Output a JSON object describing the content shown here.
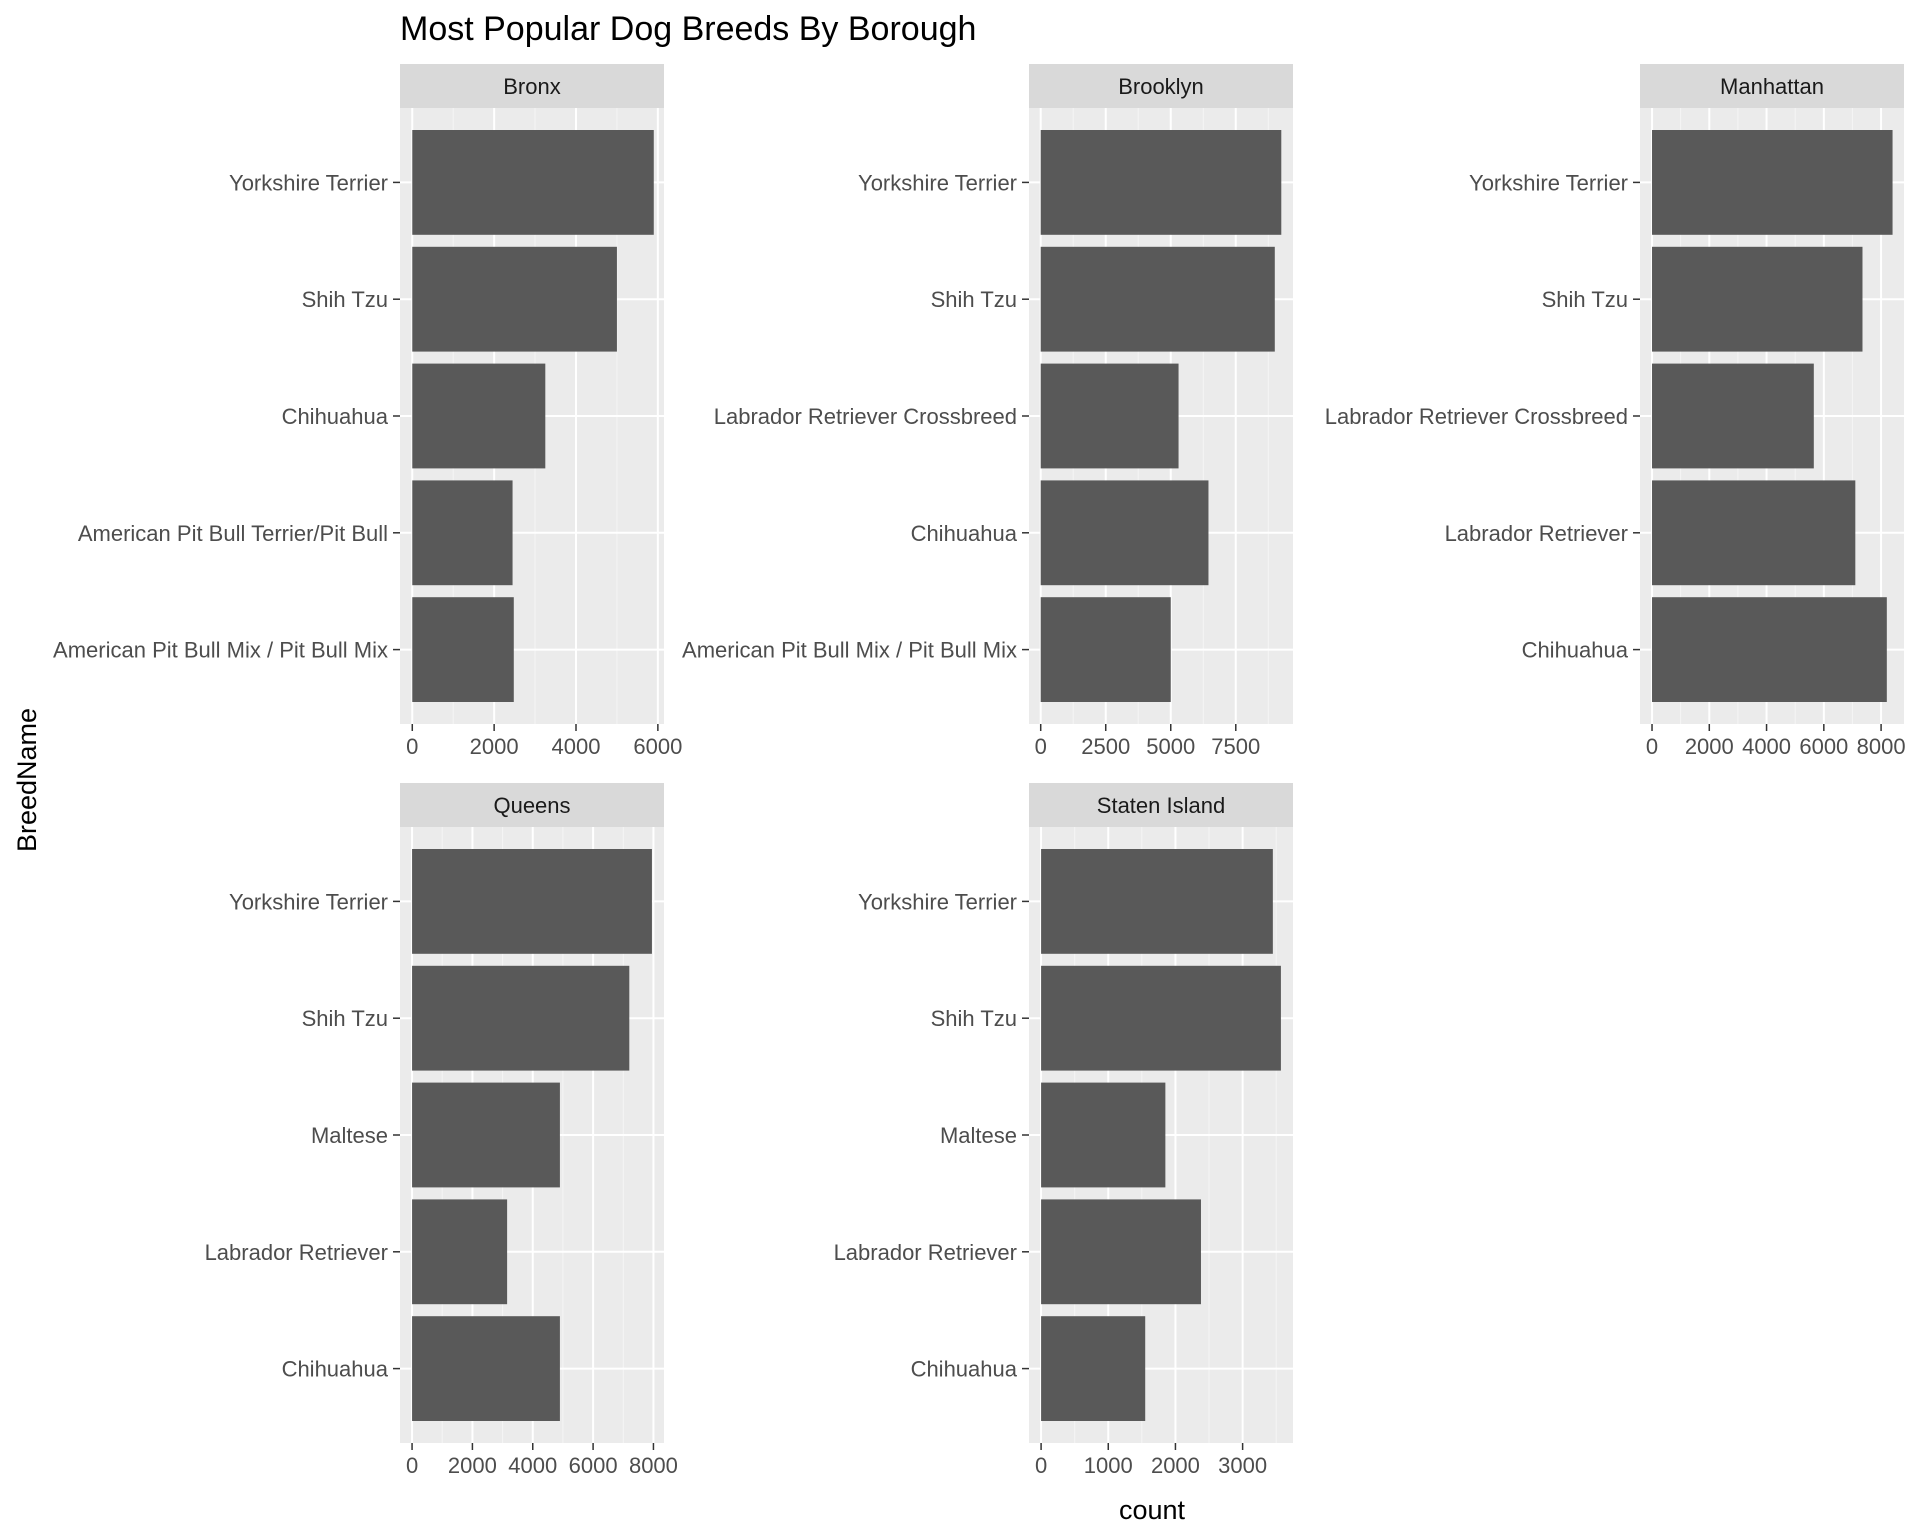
{
  "chart_data": {
    "type": "bar",
    "orientation": "horizontal",
    "title": "Most Popular Dog Breeds By Borough",
    "xlabel": "count",
    "ylabel": "BreedName",
    "grid": true,
    "facets": [
      {
        "name": "Bronx",
        "categories": [
          "Yorkshire Terrier",
          "Shih Tzu",
          "Chihuahua",
          "American Pit Bull Terrier/Pit Bull",
          "American Pit Bull Mix / Pit Bull Mix"
        ],
        "values": [
          5900,
          5000,
          3250,
          2450,
          2480
        ],
        "xlim": [
          -300,
          6150
        ],
        "ticks": [
          0,
          2000,
          4000,
          6000
        ],
        "tick_labels": [
          "0",
          "2000",
          "4000",
          "6000"
        ]
      },
      {
        "name": "Brooklyn",
        "categories": [
          "Yorkshire Terrier",
          "Shih Tzu",
          "Labrador Retriever Crossbreed",
          "Chihuahua",
          "American Pit Bull Mix / Pit Bull Mix"
        ],
        "values": [
          9250,
          9000,
          5300,
          6450,
          5000
        ],
        "xlim": [
          -450,
          9700
        ],
        "ticks": [
          0,
          2500,
          5000,
          7500
        ],
        "tick_labels": [
          "0",
          "2500",
          "5000",
          "7500"
        ]
      },
      {
        "name": "Manhattan",
        "categories": [
          "Yorkshire Terrier",
          "Shih Tzu",
          "Labrador Retriever Crossbreed",
          "Labrador Retriever",
          "Chihuahua"
        ],
        "values": [
          8400,
          7350,
          5650,
          7100,
          8200
        ],
        "xlim": [
          -420,
          8800
        ],
        "ticks": [
          0,
          2000,
          4000,
          6000,
          8000
        ],
        "tick_labels": [
          "0",
          "2000",
          "4000",
          "6000",
          "8000"
        ]
      },
      {
        "name": "Queens",
        "categories": [
          "Yorkshire Terrier",
          "Shih Tzu",
          "Maltese",
          "Labrador Retriever",
          "Chihuahua"
        ],
        "values": [
          7950,
          7200,
          4900,
          3150,
          4900
        ],
        "xlim": [
          -400,
          8350
        ],
        "ticks": [
          0,
          2000,
          4000,
          6000,
          8000
        ],
        "tick_labels": [
          "0",
          "2000",
          "4000",
          "6000",
          "8000"
        ]
      },
      {
        "name": "Staten Island",
        "categories": [
          "Yorkshire Terrier",
          "Shih Tzu",
          "Maltese",
          "Labrador Retriever",
          "Chihuahua"
        ],
        "values": [
          3450,
          3570,
          1850,
          2380,
          1550
        ],
        "xlim": [
          -180,
          3750
        ],
        "ticks": [
          0,
          1000,
          2000,
          3000
        ],
        "tick_labels": [
          "0",
          "1000",
          "2000",
          "3000"
        ]
      }
    ]
  },
  "colors": {
    "bar": "#595959",
    "panel": "#ebebeb",
    "strip": "#d9d9d9",
    "grid_major": "#ffffff",
    "grid_minor": "#f5f5f5",
    "tick": "#333333"
  }
}
